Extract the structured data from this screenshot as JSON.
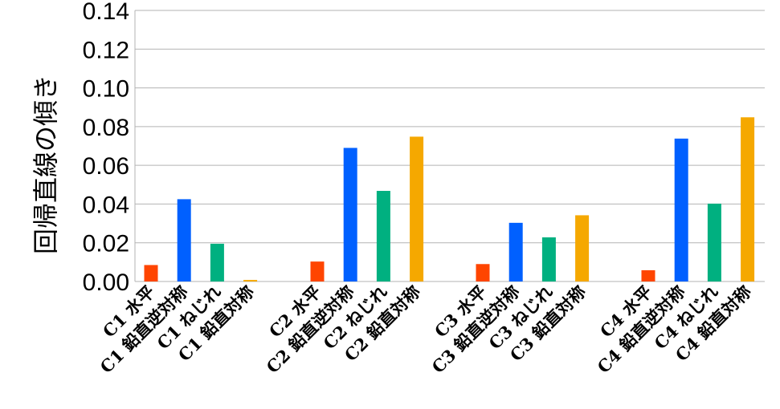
{
  "chart_data": {
    "type": "bar",
    "title": "",
    "xlabel": "",
    "ylabel": "回帰直線の傾き",
    "ylim": [
      0,
      0.14
    ],
    "yticks": [
      "0.00",
      "0.02",
      "0.04",
      "0.06",
      "0.08",
      "0.10",
      "0.12",
      "0.14"
    ],
    "grid": true,
    "legend": "none",
    "groups": [
      {
        "bars": [
          {
            "label": "C1 水平",
            "value": 0.0085,
            "color": "#ff4500"
          },
          {
            "label": "C1 鉛直逆対称",
            "value": 0.0425,
            "color": "#0060ff"
          },
          {
            "label": "C1 ねじれ",
            "value": 0.0195,
            "color": "#00b080"
          },
          {
            "label": "C1 鉛直対称",
            "value": 0.0008,
            "color": "#f5a800"
          }
        ]
      },
      {
        "bars": [
          {
            "label": "C2 水平",
            "value": 0.0103,
            "color": "#ff4500"
          },
          {
            "label": "C2 鉛直逆対称",
            "value": 0.069,
            "color": "#0060ff"
          },
          {
            "label": "C2 ねじれ",
            "value": 0.0468,
            "color": "#00b080"
          },
          {
            "label": "C2 鉛直対称",
            "value": 0.0748,
            "color": "#f5a800"
          }
        ]
      },
      {
        "bars": [
          {
            "label": "C3 水平",
            "value": 0.009,
            "color": "#ff4500"
          },
          {
            "label": "C3 鉛直逆対称",
            "value": 0.0303,
            "color": "#0060ff"
          },
          {
            "label": "C3 ねじれ",
            "value": 0.0228,
            "color": "#00b080"
          },
          {
            "label": "C3 鉛直対称",
            "value": 0.0342,
            "color": "#f5a800"
          }
        ]
      },
      {
        "bars": [
          {
            "label": "C4 水平",
            "value": 0.0058,
            "color": "#ff4500"
          },
          {
            "label": "C4 鉛直逆対称",
            "value": 0.0738,
            "color": "#0060ff"
          },
          {
            "label": "C4 ねじれ",
            "value": 0.0402,
            "color": "#00b080"
          },
          {
            "label": "C4 鉛直対称",
            "value": 0.0848,
            "color": "#f5a800"
          }
        ]
      }
    ]
  }
}
